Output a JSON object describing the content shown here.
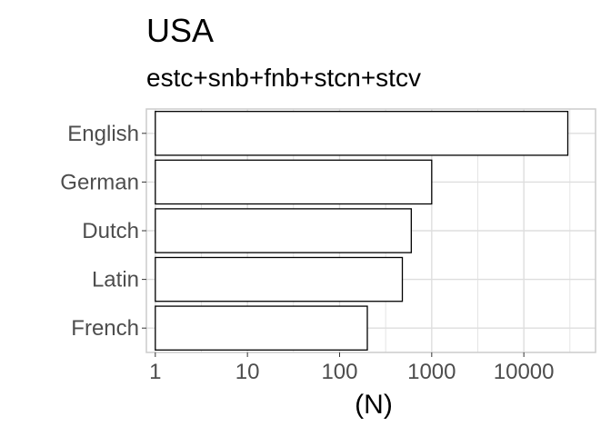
{
  "chart_data": {
    "type": "bar",
    "orientation": "horizontal",
    "title": "USA",
    "subtitle": "estc+snb+fnb+stcn+stcv",
    "xlabel": "(N)",
    "ylabel": "",
    "xscale": "log10",
    "xlim": [
      0.8,
      60000
    ],
    "xticks": [
      1,
      10,
      100,
      1000,
      10000
    ],
    "xtick_labels": [
      "1",
      "10",
      "100",
      "1000",
      "10000"
    ],
    "categories": [
      "English",
      "German",
      "Dutch",
      "Latin",
      "French"
    ],
    "values": [
      30000,
      1000,
      600,
      480,
      200
    ],
    "bar_base": 1,
    "grid": true,
    "bar_fill": "#ffffff",
    "bar_stroke": "#000000",
    "grid_color": "#dedede",
    "panel_border": "#cccccc"
  }
}
